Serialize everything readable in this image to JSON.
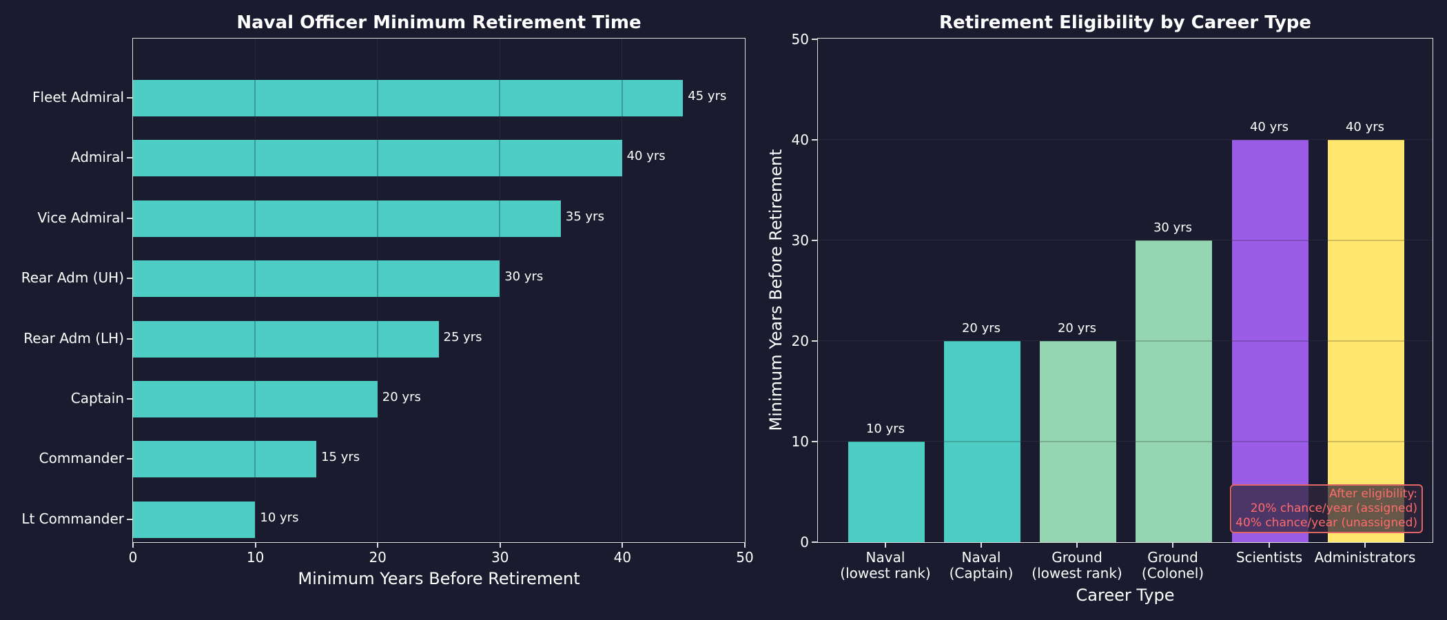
{
  "left": {
    "title": "Naval Officer Minimum Retirement Time",
    "xlabel": "Minimum Years Before Retirement",
    "xticks": [
      "0",
      "10",
      "20",
      "30",
      "40",
      "50"
    ],
    "bars": [
      {
        "label": "Fleet Admiral",
        "value": 45,
        "text": "45 yrs"
      },
      {
        "label": "Admiral",
        "value": 40,
        "text": "40 yrs"
      },
      {
        "label": "Vice Admiral",
        "value": 35,
        "text": "35 yrs"
      },
      {
        "label": "Rear Adm (UH)",
        "value": 30,
        "text": "30 yrs"
      },
      {
        "label": "Rear Adm (LH)",
        "value": 25,
        "text": "25 yrs"
      },
      {
        "label": "Captain",
        "value": 20,
        "text": "20 yrs"
      },
      {
        "label": "Commander",
        "value": 15,
        "text": "15 yrs"
      },
      {
        "label": "Lt Commander",
        "value": 10,
        "text": "10 yrs"
      }
    ]
  },
  "right": {
    "title": "Retirement Eligibility by Career Type",
    "xlabel": "Career Type",
    "ylabel": "Minimum Years Before Retirement",
    "yticks": [
      "0",
      "10",
      "20",
      "30",
      "40",
      "50"
    ],
    "bars": [
      {
        "line1": "Naval",
        "line2": "(lowest rank)",
        "value": 10,
        "text": "10 yrs",
        "color": "#4ecdc4"
      },
      {
        "line1": "Naval",
        "line2": "(Captain)",
        "value": 20,
        "text": "20 yrs",
        "color": "#4ecdc4"
      },
      {
        "line1": "Ground",
        "line2": "(lowest rank)",
        "value": 20,
        "text": "20 yrs",
        "color": "#95d5b2"
      },
      {
        "line1": "Ground",
        "line2": "(Colonel)",
        "value": 30,
        "text": "30 yrs",
        "color": "#95d5b2"
      },
      {
        "line1": "Scientists",
        "line2": "",
        "value": 40,
        "text": "40 yrs",
        "color": "#9b5de5"
      },
      {
        "line1": "Administrators",
        "line2": "",
        "value": 40,
        "text": "40 yrs",
        "color": "#ffe66d"
      }
    ],
    "note": {
      "line1": "After eligibility:",
      "line2": "20% chance/year (assigned)",
      "line3": "40% chance/year (unassigned)"
    }
  },
  "chart_data": [
    {
      "type": "bar",
      "orientation": "horizontal",
      "title": "Naval Officer Minimum Retirement Time",
      "xlabel": "Minimum Years Before Retirement",
      "ylabel": "",
      "categories": [
        "Fleet Admiral",
        "Admiral",
        "Vice Admiral",
        "Rear Adm (UH)",
        "Rear Adm (LH)",
        "Captain",
        "Commander",
        "Lt Commander"
      ],
      "values": [
        45,
        40,
        35,
        30,
        25,
        20,
        15,
        10
      ],
      "xlim": [
        0,
        50
      ],
      "grid": true,
      "bar_color": "#4ecdc4"
    },
    {
      "type": "bar",
      "orientation": "vertical",
      "title": "Retirement Eligibility by Career Type",
      "xlabel": "Career Type",
      "ylabel": "Minimum Years Before Retirement",
      "categories": [
        "Naval (lowest rank)",
        "Naval (Captain)",
        "Ground (lowest rank)",
        "Ground (Colonel)",
        "Scientists",
        "Administrators"
      ],
      "values": [
        10,
        20,
        20,
        30,
        40,
        40
      ],
      "colors": [
        "#4ecdc4",
        "#4ecdc4",
        "#95d5b2",
        "#95d5b2",
        "#9b5de5",
        "#ffe66d"
      ],
      "ylim": [
        0,
        50
      ],
      "grid": true,
      "annotations": [
        "After eligibility: 20% chance/year (assigned) 40% chance/year (unassigned)"
      ]
    }
  ]
}
